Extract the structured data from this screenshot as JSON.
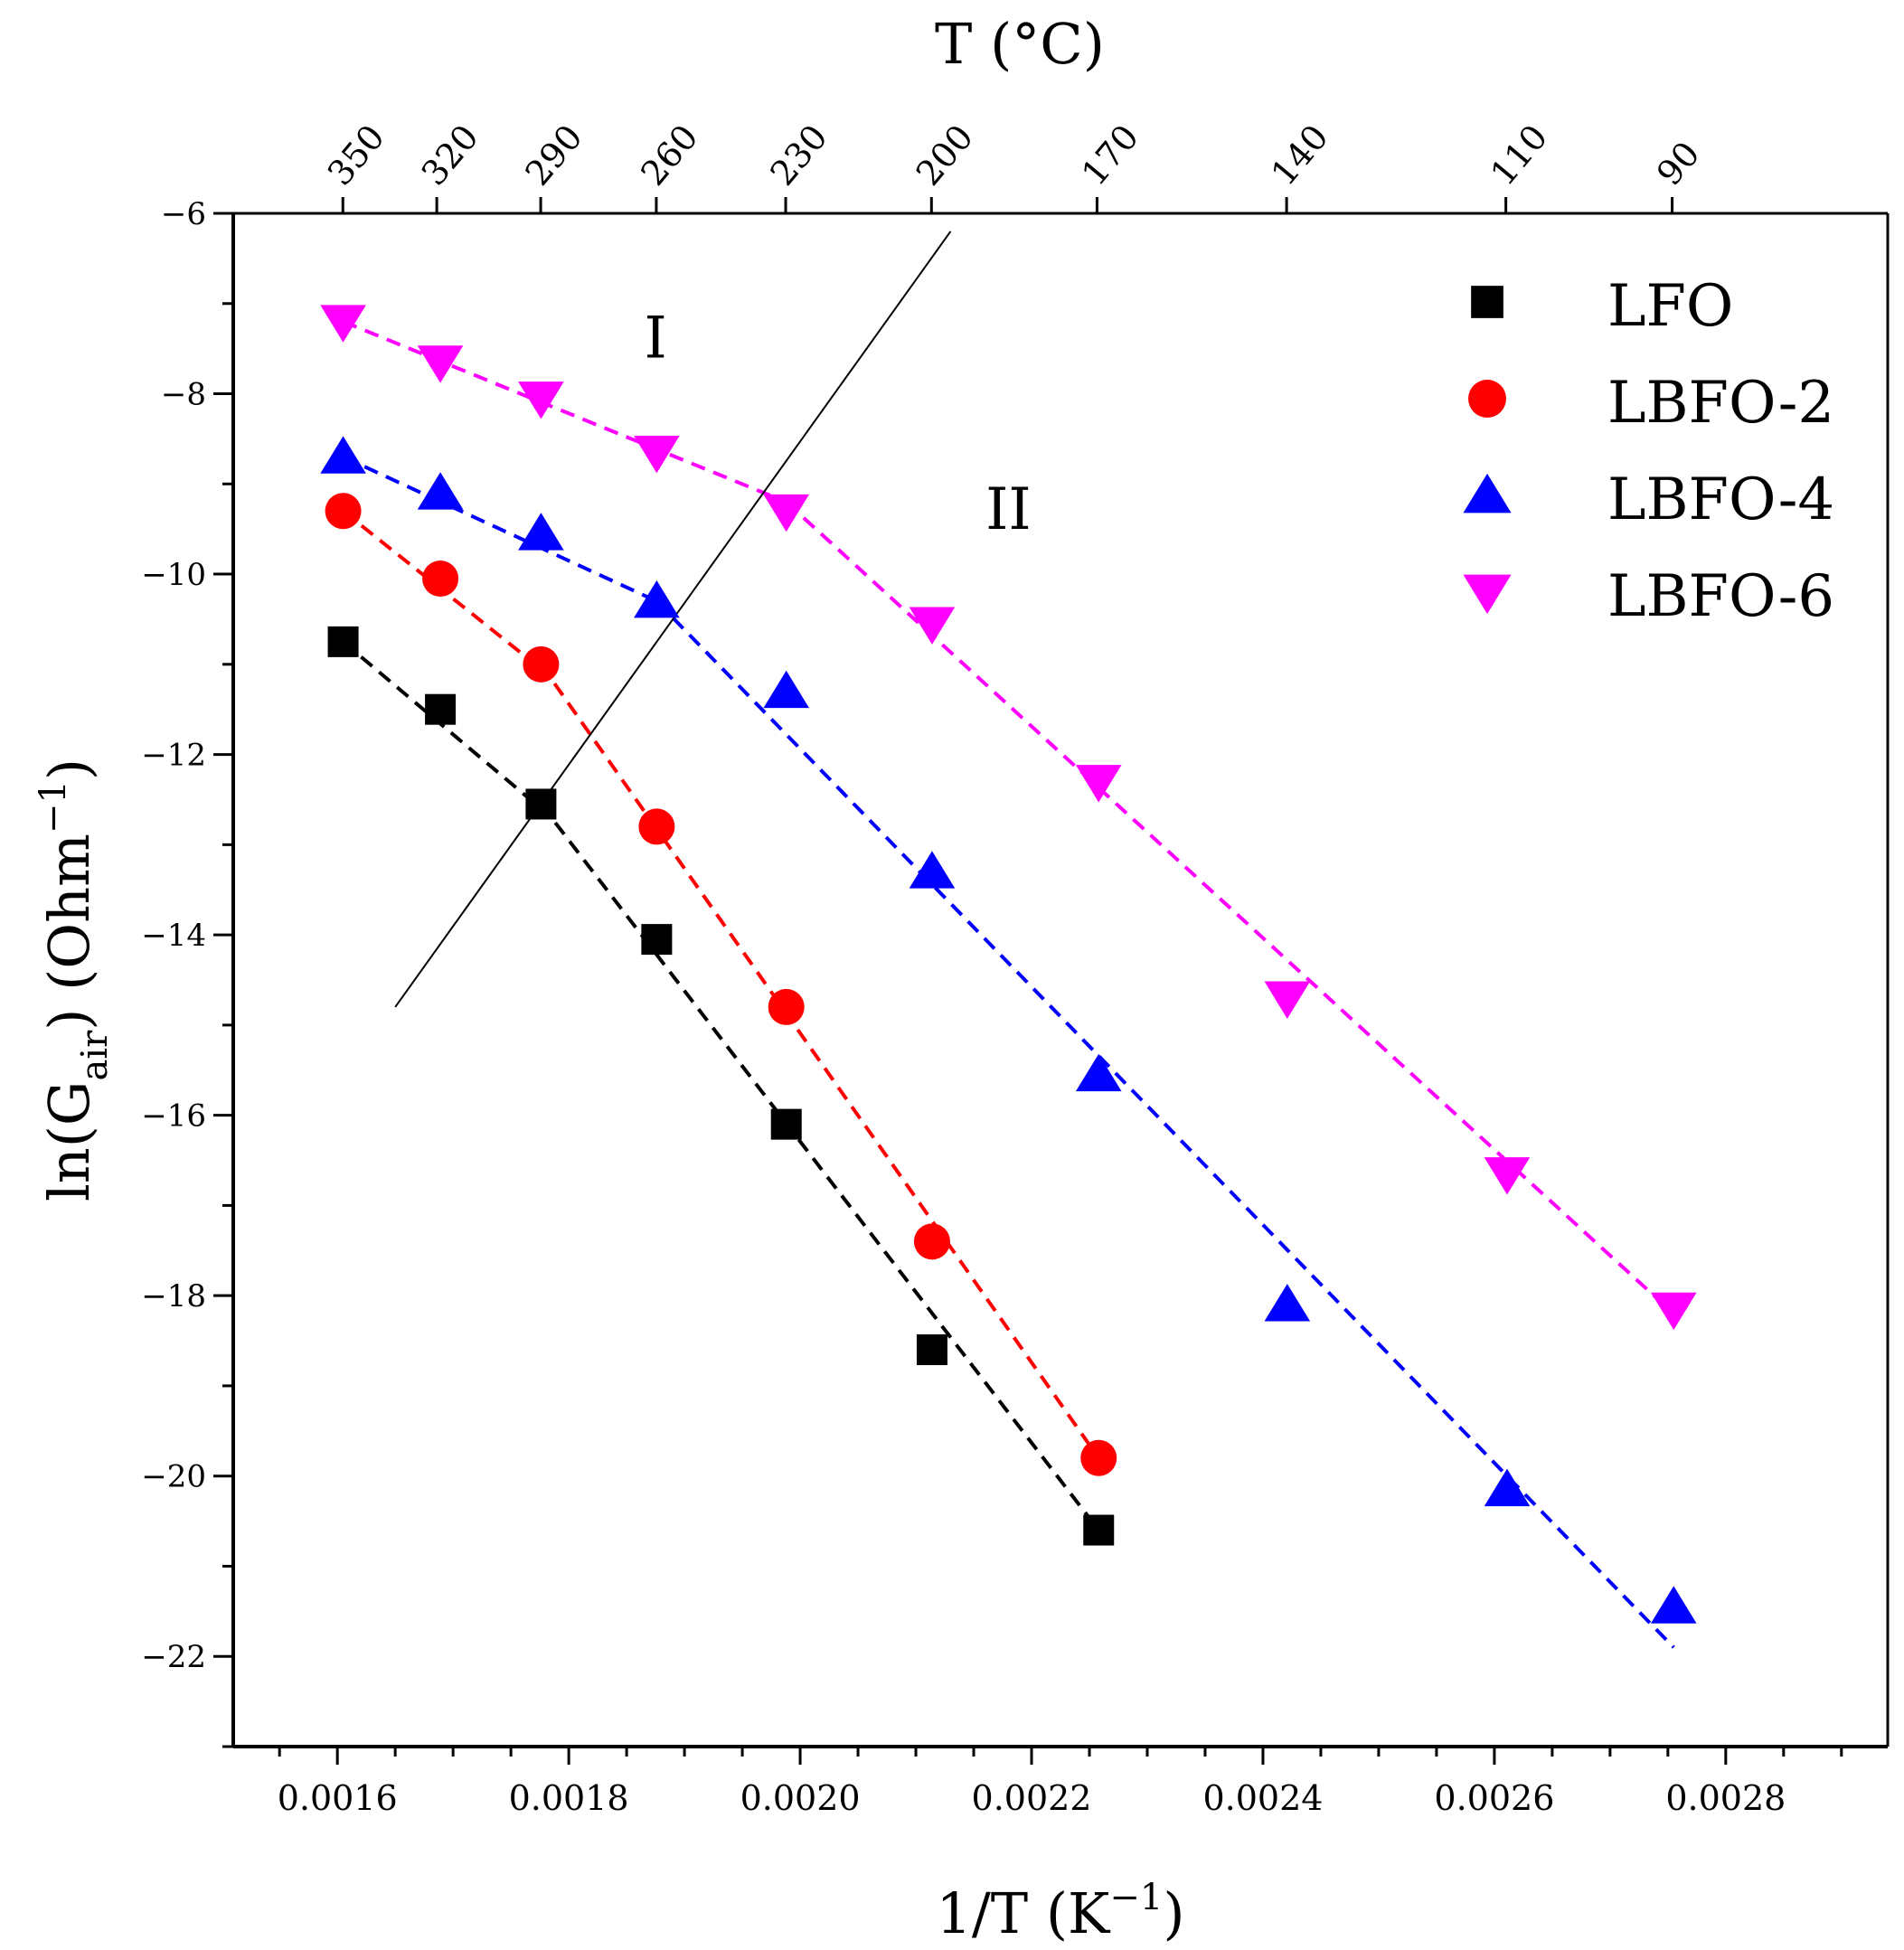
{
  "chart_data": {
    "type": "scatter",
    "title": "",
    "xlabel": "1/T (K",
    "xlabel_sup": "−1",
    "xlabel_end": ")",
    "ylabel": "ln(G",
    "ylabel_sub": "air",
    "ylabel_mid": ") (Ohm",
    "ylabel_sup": "−1",
    "ylabel_end": ")",
    "top_xlabel": "T (°C)",
    "xlim": [
      0.00151,
      0.00294
    ],
    "ylim": [
      -23,
      -6
    ],
    "x_ticks": [
      0.0016,
      0.0018,
      0.002,
      0.0022,
      0.0024,
      0.0026,
      0.0028
    ],
    "x_tick_labels": [
      "0.0016",
      "0.0018",
      "0.0020",
      "0.0022",
      "0.0024",
      "0.0026",
      "0.0028"
    ],
    "y_ticks": [
      -6,
      -8,
      -10,
      -12,
      -14,
      -16,
      -18,
      -20,
      -22
    ],
    "y_tick_labels": [
      "−6",
      "−8",
      "−10",
      "−12",
      "−14",
      "−16",
      "−18",
      "−20",
      "−22"
    ],
    "top_ticks": [
      {
        "label": "350",
        "celsius": 350
      },
      {
        "label": "320",
        "celsius": 320
      },
      {
        "label": "290",
        "celsius": 290
      },
      {
        "label": "260",
        "celsius": 260
      },
      {
        "label": "230",
        "celsius": 230
      },
      {
        "label": "200",
        "celsius": 200
      },
      {
        "label": "170",
        "celsius": 170
      },
      {
        "label": "140",
        "celsius": 140
      },
      {
        "label": "110",
        "celsius": 110
      },
      {
        "label": "90",
        "celsius": 90
      }
    ],
    "series": [
      {
        "name": "LFO",
        "color": "#000000",
        "marker": "square",
        "x": [
          0.001605,
          0.001689,
          0.001776,
          0.001876,
          0.001988,
          0.002114,
          0.002258
        ],
        "y": [
          -10.75,
          -11.5,
          -12.55,
          -14.05,
          -16.1,
          -18.6,
          -20.6
        ],
        "fit_segments": [
          {
            "x": [
              0.001605,
              0.001776
            ],
            "y": [
              -10.75,
              -12.6
            ]
          },
          {
            "x": [
              0.001776,
              0.002258
            ],
            "y": [
              -12.55,
              -20.6
            ]
          }
        ]
      },
      {
        "name": "LBFO-2",
        "color": "#ff0000",
        "marker": "circle",
        "x": [
          0.001605,
          0.001689,
          0.001776,
          0.001876,
          0.001988,
          0.002114,
          0.002258
        ],
        "y": [
          -9.3,
          -10.05,
          -11.0,
          -12.8,
          -14.8,
          -17.4,
          -19.8
        ],
        "fit_segments": [
          {
            "x": [
              0.001605,
              0.001776
            ],
            "y": [
              -9.3,
              -11.05
            ]
          },
          {
            "x": [
              0.001776,
              0.002258
            ],
            "y": [
              -11.0,
              -19.8
            ]
          }
        ]
      },
      {
        "name": "LBFO-4",
        "color": "#0000ff",
        "marker": "triangle-up",
        "x": [
          0.001605,
          0.001689,
          0.001776,
          0.001876,
          0.001988,
          0.002114,
          0.002258,
          0.002421,
          0.002611,
          0.002755
        ],
        "y": [
          -8.7,
          -9.1,
          -9.55,
          -10.3,
          -11.3,
          -13.3,
          -15.55,
          -18.1,
          -20.15,
          -21.45
        ],
        "fit_segments": [
          {
            "x": [
              0.001605,
              0.001876
            ],
            "y": [
              -8.7,
              -10.3
            ]
          },
          {
            "x": [
              0.001876,
              0.002755
            ],
            "y": [
              -10.3,
              -21.9
            ]
          }
        ]
      },
      {
        "name": "LBFO-6",
        "color": "#ff00ff",
        "marker": "triangle-down",
        "x": [
          0.001605,
          0.001689,
          0.001776,
          0.001876,
          0.001988,
          0.002114,
          0.002258,
          0.002421,
          0.002611,
          0.002755
        ],
        "y": [
          -7.2,
          -7.65,
          -8.05,
          -8.65,
          -9.3,
          -10.55,
          -12.3,
          -14.7,
          -16.65,
          -18.15
        ],
        "fit_segments": [
          {
            "x": [
              0.001605,
              0.001988
            ],
            "y": [
              -7.2,
              -9.2
            ]
          },
          {
            "x": [
              0.001988,
              0.002755
            ],
            "y": [
              -9.2,
              -18.2
            ]
          }
        ]
      }
    ],
    "boundary_line": {
      "x": [
        0.00165,
        0.00213
      ],
      "y": [
        -14.8,
        -6.2
      ]
    },
    "region_labels": [
      {
        "text": "I",
        "x": 0.001875,
        "y": -7.6
      },
      {
        "text": "II",
        "x": 0.00218,
        "y": -9.5
      }
    ],
    "legend": {
      "position": "top-right"
    }
  }
}
